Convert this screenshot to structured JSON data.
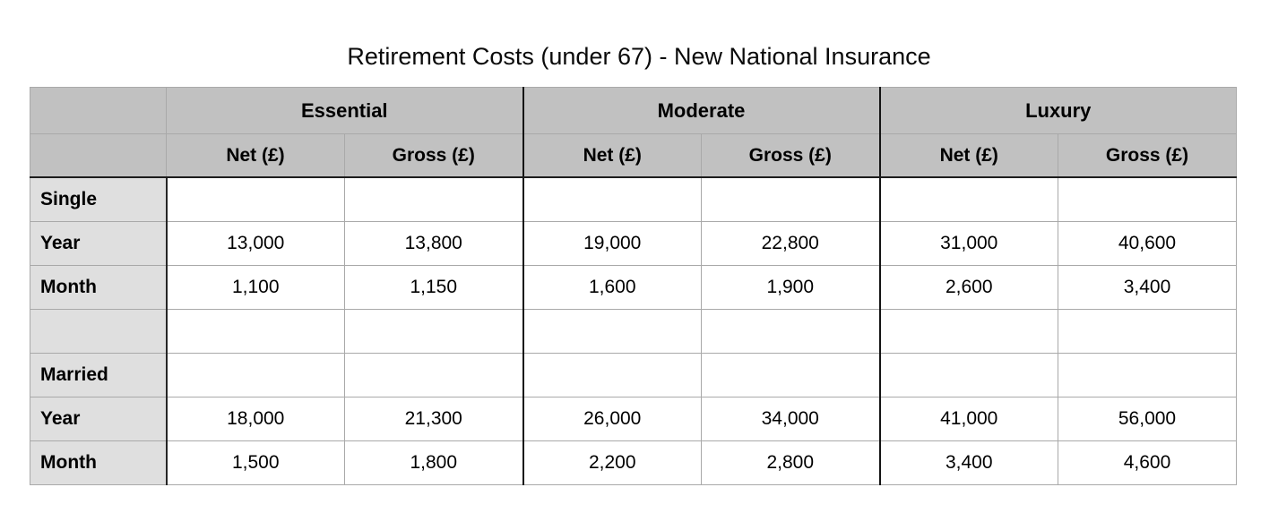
{
  "title": "Retirement Costs (under 67) - New National Insurance",
  "colors": {
    "header_bg": "#c1c1c1",
    "label_column_bg": "#dfdfdf",
    "grid_line": "#a9a9a9",
    "separator_line": "#141414",
    "background": "#ffffff",
    "text": "#000000"
  },
  "table": {
    "corner": "",
    "groups": [
      "Essential",
      "Moderate",
      "Luxury"
    ],
    "subheaders": [
      "Net (£)",
      "Gross (£)",
      "Net (£)",
      "Gross (£)",
      "Net (£)",
      "Gross (£)"
    ],
    "rows": [
      {
        "label": "Single",
        "values": [
          "",
          "",
          "",
          "",
          "",
          ""
        ]
      },
      {
        "label": "Year",
        "values": [
          "13,000",
          "13,800",
          "19,000",
          "22,800",
          "31,000",
          "40,600"
        ]
      },
      {
        "label": "Month",
        "values": [
          "1,100",
          "1,150",
          "1,600",
          "1,900",
          "2,600",
          "3,400"
        ]
      },
      {
        "label": "",
        "values": [
          "",
          "",
          "",
          "",
          "",
          ""
        ]
      },
      {
        "label": "Married",
        "values": [
          "",
          "",
          "",
          "",
          "",
          ""
        ]
      },
      {
        "label": "Year",
        "values": [
          "18,000",
          "21,300",
          "26,000",
          "34,000",
          "41,000",
          "56,000"
        ]
      },
      {
        "label": "Month",
        "values": [
          "1,500",
          "1,800",
          "2,200",
          "2,800",
          "3,400",
          "4,600"
        ]
      }
    ]
  }
}
